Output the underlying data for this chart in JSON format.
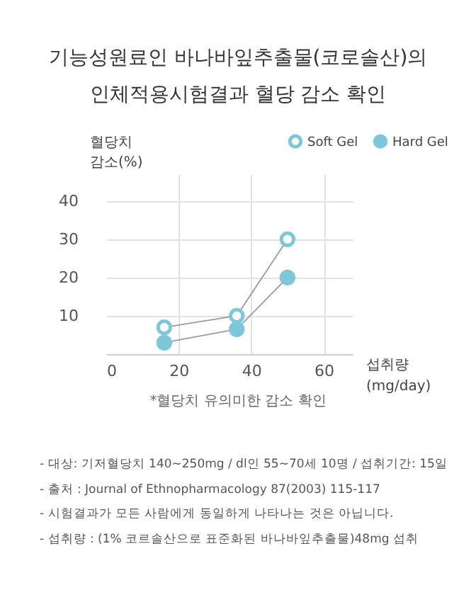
{
  "chart_data": {
    "type": "line",
    "title": "기능성원료인 바나바잎추출물(코로솔산)의\n인체적용시험결과 혈당 감소 확인",
    "xlabel": "섭취량\n(mg/day)",
    "ylabel": "혈당치\n감소(%)",
    "x": [
      16,
      36,
      50
    ],
    "series": [
      {
        "name": "Soft Gel",
        "color": "#7cc8da",
        "values": [
          7,
          10,
          30
        ]
      },
      {
        "name": "Hard Gel",
        "color": "#7cc8da",
        "values": [
          3,
          6.5,
          20
        ]
      }
    ],
    "xlim": [
      0,
      68
    ],
    "xticks": [
      0,
      20,
      40,
      60
    ],
    "ylim": [
      0,
      47
    ],
    "yticks": [
      10,
      20,
      30,
      40
    ],
    "grid": true,
    "legend": "top right",
    "marker": "circle",
    "annotations": [
      "*혈당치 유의미한 감소 확인",
      "-  대상: 기저혈당치 140~250mg / dl인 55~70세 10명 / 섭취기간: 15일",
      "-  출처 : Journal of Ethnopharmacology 87(2003) 115-117",
      "-  시험결과가 모든 사람에게 동일하게 나타나는 것은 아닙니다.",
      "-  섭취량 : (1% 코르솔산으로 표준화된 바나바잎추출물)48mg 섭취"
    ]
  }
}
